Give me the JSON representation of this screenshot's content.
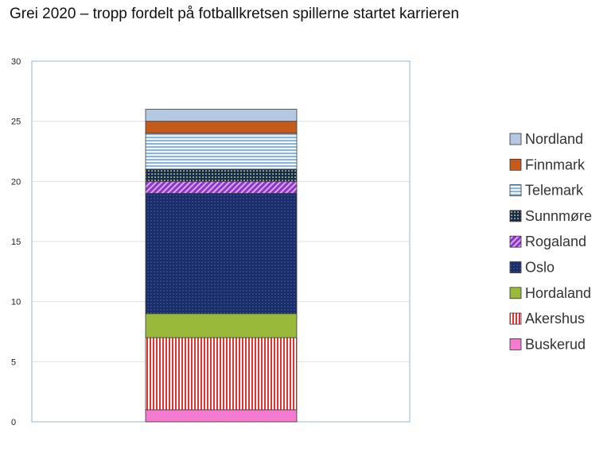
{
  "chart_data": {
    "type": "bar",
    "stacked": true,
    "title": "Grei 2020 – tropp fordelt på fotballkretsen spillerne startet karrieren",
    "xlabel": "",
    "ylabel": "",
    "ylim": [
      0,
      30
    ],
    "yticks": [
      0,
      5,
      10,
      15,
      20,
      25,
      30
    ],
    "grid": true,
    "legend_position": "right",
    "categories": [
      ""
    ],
    "series": [
      {
        "name": "Buskerud",
        "values": [
          1
        ],
        "color": "#f47bd0",
        "pattern": "solid"
      },
      {
        "name": "Akershus",
        "values": [
          6
        ],
        "color": "#e8312f",
        "pattern": "vertical-stripes"
      },
      {
        "name": "Hordaland",
        "values": [
          2
        ],
        "color": "#98b93a",
        "pattern": "solid"
      },
      {
        "name": "Oslo",
        "values": [
          10
        ],
        "color": "#1a2d6b",
        "pattern": "dots"
      },
      {
        "name": "Rogaland",
        "values": [
          1
        ],
        "color": "#8b35c9",
        "pattern": "diagonal-stripes"
      },
      {
        "name": "Sunnmøre",
        "values": [
          1
        ],
        "color": "#1b2a52",
        "pattern": "grid"
      },
      {
        "name": "Telemark",
        "values": [
          3
        ],
        "color": "#8bb6d6",
        "pattern": "horizontal-stripes"
      },
      {
        "name": "Finnmark",
        "values": [
          1
        ],
        "color": "#c55a1a",
        "pattern": "solid"
      },
      {
        "name": "Nordland",
        "values": [
          1
        ],
        "color": "#b4c8e2",
        "pattern": "solid"
      }
    ]
  }
}
